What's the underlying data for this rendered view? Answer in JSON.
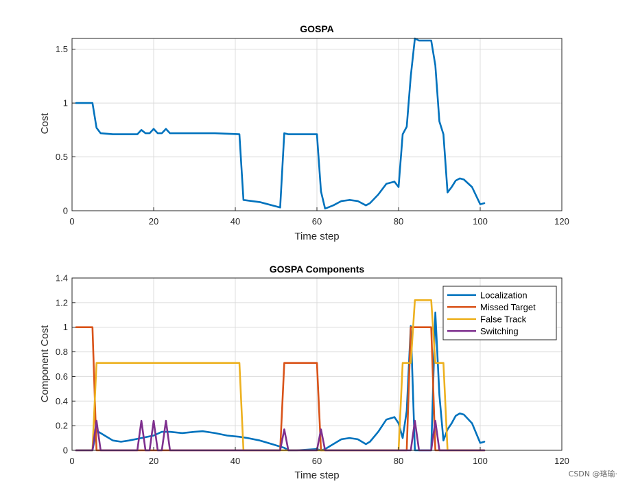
{
  "colors": {
    "localization": "#0072BD",
    "missed": "#D95319",
    "false_track": "#EDB120",
    "switching": "#7E2F8E",
    "grid": "#dcdcdc",
    "axis": "#262626"
  },
  "watermark": "CSDN @珞瑜·",
  "chart_data": [
    {
      "type": "line",
      "title": "GOSPA",
      "xlabel": "Time step",
      "ylabel": "Cost",
      "xlim": [
        0,
        120
      ],
      "ylim": [
        0,
        1.6
      ],
      "xticks": [
        0,
        20,
        40,
        60,
        80,
        100,
        120
      ],
      "yticks": [
        0,
        0.5,
        1,
        1.5
      ],
      "grid": true,
      "series": [
        {
          "color_key": "localization",
          "points": [
            [
              1,
              1
            ],
            [
              5,
              1
            ],
            [
              6,
              0.77
            ],
            [
              7,
              0.72
            ],
            [
              10,
              0.71
            ],
            [
              16,
              0.71
            ],
            [
              17,
              0.75
            ],
            [
              18,
              0.72
            ],
            [
              19,
              0.72
            ],
            [
              20,
              0.76
            ],
            [
              21,
              0.72
            ],
            [
              22,
              0.72
            ],
            [
              23,
              0.76
            ],
            [
              24,
              0.72
            ],
            [
              30,
              0.72
            ],
            [
              35,
              0.72
            ],
            [
              41,
              0.71
            ],
            [
              42,
              0.1
            ],
            [
              46,
              0.08
            ],
            [
              51,
              0.03
            ],
            [
              52,
              0.72
            ],
            [
              53,
              0.71
            ],
            [
              60,
              0.71
            ],
            [
              61,
              0.18
            ],
            [
              62,
              0.02
            ],
            [
              64,
              0.05
            ],
            [
              66,
              0.09
            ],
            [
              68,
              0.1
            ],
            [
              70,
              0.09
            ],
            [
              72,
              0.05
            ],
            [
              73,
              0.07
            ],
            [
              75,
              0.15
            ],
            [
              77,
              0.25
            ],
            [
              79,
              0.27
            ],
            [
              80,
              0.22
            ],
            [
              81,
              0.71
            ],
            [
              82,
              0.78
            ],
            [
              83,
              1.25
            ],
            [
              84,
              1.6
            ],
            [
              85,
              1.58
            ],
            [
              88,
              1.58
            ],
            [
              89,
              1.35
            ],
            [
              90,
              0.83
            ],
            [
              91,
              0.71
            ],
            [
              92,
              0.17
            ],
            [
              93,
              0.22
            ],
            [
              94,
              0.28
            ],
            [
              95,
              0.3
            ],
            [
              96,
              0.29
            ],
            [
              98,
              0.22
            ],
            [
              100,
              0.06
            ],
            [
              101,
              0.07
            ]
          ]
        }
      ]
    },
    {
      "type": "line",
      "title": "GOSPA Components",
      "xlabel": "Time step",
      "ylabel": "Component Cost",
      "xlim": [
        0,
        120
      ],
      "ylim": [
        0,
        1.4
      ],
      "xticks": [
        0,
        20,
        40,
        60,
        80,
        100,
        120
      ],
      "yticks": [
        0,
        0.2,
        0.4,
        0.6,
        0.8,
        1,
        1.2,
        1.4
      ],
      "grid": true,
      "legend_position": "top-right",
      "series": [
        {
          "name": "Localization",
          "color_key": "localization",
          "points": [
            [
              1,
              0
            ],
            [
              5,
              0
            ],
            [
              6,
              0.16
            ],
            [
              8,
              0.12
            ],
            [
              10,
              0.08
            ],
            [
              12,
              0.07
            ],
            [
              14,
              0.08
            ],
            [
              17,
              0.1
            ],
            [
              20,
              0.12
            ],
            [
              22,
              0.15
            ],
            [
              24,
              0.15
            ],
            [
              27,
              0.14
            ],
            [
              30,
              0.15
            ],
            [
              32,
              0.155
            ],
            [
              35,
              0.14
            ],
            [
              38,
              0.12
            ],
            [
              41,
              0.11
            ],
            [
              43,
              0.1
            ],
            [
              46,
              0.08
            ],
            [
              49,
              0.05
            ],
            [
              51,
              0.03
            ],
            [
              52,
              0.02
            ],
            [
              53,
              0.0
            ],
            [
              55,
              0.0
            ],
            [
              60,
              0.01
            ],
            [
              61,
              0.0
            ],
            [
              62,
              0.01
            ],
            [
              64,
              0.05
            ],
            [
              66,
              0.09
            ],
            [
              68,
              0.1
            ],
            [
              70,
              0.09
            ],
            [
              72,
              0.05
            ],
            [
              73,
              0.07
            ],
            [
              75,
              0.15
            ],
            [
              77,
              0.25
            ],
            [
              79,
              0.27
            ],
            [
              80,
              0.22
            ],
            [
              81,
              0.1
            ],
            [
              82,
              0.32
            ],
            [
              83,
              1.01
            ],
            [
              84,
              0.0
            ],
            [
              85,
              0.0
            ],
            [
              88,
              0.0
            ],
            [
              89,
              1.12
            ],
            [
              90,
              0.45
            ],
            [
              91,
              0.08
            ],
            [
              92,
              0.17
            ],
            [
              93,
              0.22
            ],
            [
              94,
              0.28
            ],
            [
              95,
              0.3
            ],
            [
              96,
              0.29
            ],
            [
              98,
              0.22
            ],
            [
              100,
              0.06
            ],
            [
              101,
              0.07
            ]
          ]
        },
        {
          "name": "Missed Target",
          "color_key": "missed",
          "points": [
            [
              1,
              1
            ],
            [
              5,
              1
            ],
            [
              6,
              0
            ],
            [
              51,
              0
            ],
            [
              52,
              0.71
            ],
            [
              60,
              0.71
            ],
            [
              61,
              0
            ],
            [
              82,
              0
            ],
            [
              83,
              1
            ],
            [
              88,
              1
            ],
            [
              89,
              0
            ],
            [
              101,
              0
            ]
          ]
        },
        {
          "name": "False Track",
          "color_key": "false_track",
          "points": [
            [
              1,
              0
            ],
            [
              5,
              0
            ],
            [
              6,
              0.71
            ],
            [
              41,
              0.71
            ],
            [
              42,
              0
            ],
            [
              80,
              0
            ],
            [
              81,
              0.71
            ],
            [
              83,
              0.71
            ],
            [
              84,
              1.22
            ],
            [
              88,
              1.22
            ],
            [
              89,
              0.71
            ],
            [
              91,
              0.71
            ],
            [
              92,
              0
            ],
            [
              101,
              0
            ]
          ]
        },
        {
          "name": "Switching",
          "color_key": "switching",
          "points": [
            [
              1,
              0
            ],
            [
              5,
              0
            ],
            [
              6,
              0.24
            ],
            [
              7,
              0
            ],
            [
              16,
              0
            ],
            [
              17,
              0.24
            ],
            [
              18,
              0
            ],
            [
              19,
              0
            ],
            [
              20,
              0.24
            ],
            [
              21,
              0
            ],
            [
              22,
              0
            ],
            [
              23,
              0.24
            ],
            [
              24,
              0
            ],
            [
              51,
              0
            ],
            [
              52,
              0.17
            ],
            [
              53,
              0
            ],
            [
              60,
              0
            ],
            [
              61,
              0.17
            ],
            [
              62,
              0
            ],
            [
              83,
              0
            ],
            [
              84,
              0.24
            ],
            [
              85,
              0
            ],
            [
              88,
              0
            ],
            [
              89,
              0.24
            ],
            [
              90,
              0
            ],
            [
              101,
              0
            ]
          ]
        }
      ]
    }
  ]
}
